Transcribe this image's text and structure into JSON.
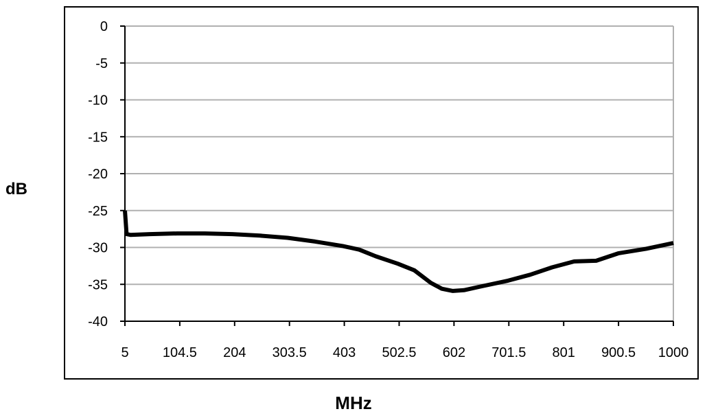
{
  "chart_data": {
    "type": "line",
    "title": "",
    "xlabel": "MHz",
    "ylabel": "dB",
    "x_ticks": [
      "5",
      "104.5",
      "204",
      "303.5",
      "403",
      "502.5",
      "602",
      "701.5",
      "801",
      "900.5",
      "1000"
    ],
    "y_ticks": [
      0,
      -5,
      -10,
      -15,
      -20,
      -25,
      -30,
      -35,
      -40
    ],
    "xlim": [
      5,
      1000
    ],
    "ylim": [
      -40,
      0
    ],
    "grid": true,
    "colors": {
      "line": "#000000",
      "grid": "#b0b0b0",
      "axis": "#000000"
    },
    "series": [
      {
        "values": [
          {
            "x": 5,
            "y": -25
          },
          {
            "x": 8,
            "y": -28.2
          },
          {
            "x": 15,
            "y": -28.3
          },
          {
            "x": 50,
            "y": -28.2
          },
          {
            "x": 100,
            "y": -28.1
          },
          {
            "x": 150,
            "y": -28.1
          },
          {
            "x": 200,
            "y": -28.2
          },
          {
            "x": 250,
            "y": -28.4
          },
          {
            "x": 300,
            "y": -28.7
          },
          {
            "x": 350,
            "y": -29.2
          },
          {
            "x": 400,
            "y": -29.8
          },
          {
            "x": 430,
            "y": -30.3
          },
          {
            "x": 460,
            "y": -31.2
          },
          {
            "x": 500,
            "y": -32.2
          },
          {
            "x": 530,
            "y": -33.1
          },
          {
            "x": 560,
            "y": -34.8
          },
          {
            "x": 580,
            "y": -35.6
          },
          {
            "x": 600,
            "y": -35.9
          },
          {
            "x": 620,
            "y": -35.8
          },
          {
            "x": 650,
            "y": -35.3
          },
          {
            "x": 700,
            "y": -34.5
          },
          {
            "x": 740,
            "y": -33.7
          },
          {
            "x": 780,
            "y": -32.7
          },
          {
            "x": 820,
            "y": -31.9
          },
          {
            "x": 860,
            "y": -31.8
          },
          {
            "x": 900,
            "y": -30.8
          },
          {
            "x": 950,
            "y": -30.2
          },
          {
            "x": 1000,
            "y": -29.4
          }
        ]
      }
    ]
  }
}
